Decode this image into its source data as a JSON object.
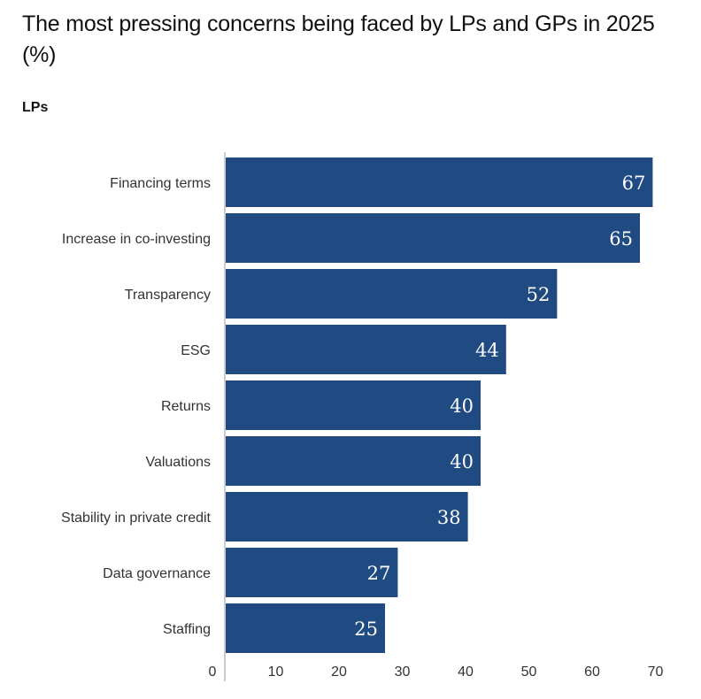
{
  "chart_data": {
    "type": "bar",
    "orientation": "horizontal",
    "title": "The most pressing concerns being faced by LPs and GPs in 2025 (%)",
    "subtitle": "LPs",
    "categories": [
      "Financing terms",
      "Increase in co-investing",
      "Transparency",
      "ESG",
      "Returns",
      "Valuations",
      "Stability in private credit",
      "Data governance",
      "Staffing"
    ],
    "values": [
      67,
      65,
      52,
      44,
      40,
      40,
      38,
      27,
      25
    ],
    "xlabel": "",
    "ylabel": "",
    "xlim": [
      0,
      70
    ],
    "xticks": [
      "0",
      "10",
      "20",
      "30",
      "40",
      "50",
      "60",
      "70"
    ],
    "grid": false,
    "legend": "none",
    "bar_color": "#1f4a82",
    "value_label_color": "#ffffff"
  }
}
